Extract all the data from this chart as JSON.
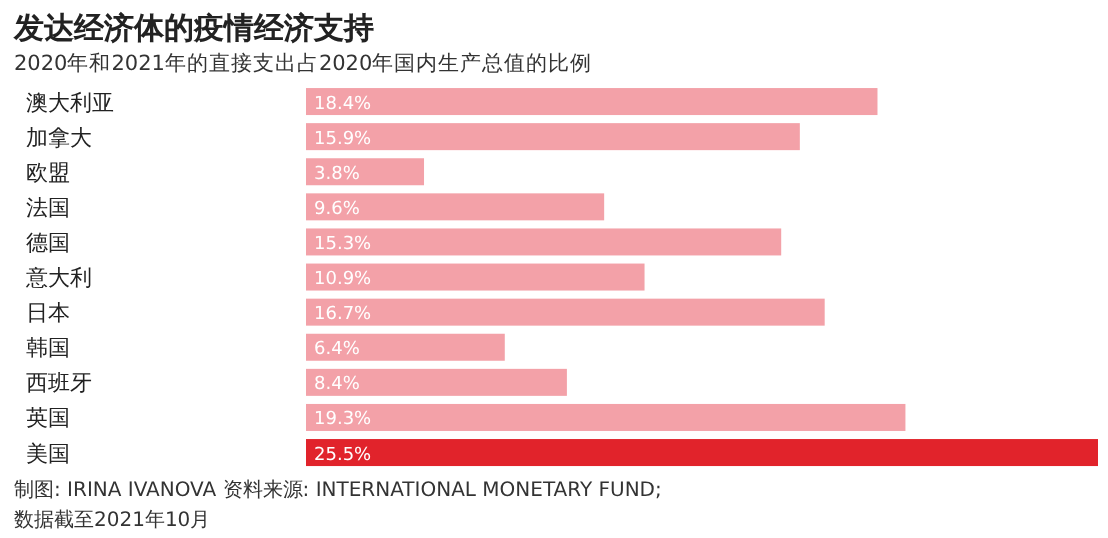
{
  "chart_data": {
    "type": "bar",
    "orientation": "horizontal",
    "title": "发达经济体的疫情经济支持",
    "subtitle": "2020年和2021年的直接支出占2020年国内生产总值的比例",
    "categories": [
      "澳大利亚",
      "加拿大",
      "欧盟",
      "法国",
      "德国",
      "意大利",
      "日本",
      "韩国",
      "西班牙",
      "英国",
      "美国"
    ],
    "values": [
      18.4,
      15.9,
      3.8,
      9.6,
      15.3,
      10.9,
      16.7,
      6.4,
      8.4,
      19.3,
      25.5
    ],
    "value_labels": [
      "18.4%",
      "15.9%",
      "3.8%",
      "9.6%",
      "15.3%",
      "10.9%",
      "16.7%",
      "6.4%",
      "8.4%",
      "19.3%",
      "25.5%"
    ],
    "colors": [
      "#f3a1a8",
      "#f3a1a8",
      "#f3a1a8",
      "#f3a1a8",
      "#f3a1a8",
      "#f3a1a8",
      "#f3a1a8",
      "#f3a1a8",
      "#f3a1a8",
      "#f3a1a8",
      "#e1232b"
    ],
    "annotations": [
      "制图: IRINA IVANOVA 资料来源: INTERNATIONAL MONETARY FUND;",
      "数据截至2021年10月"
    ]
  }
}
